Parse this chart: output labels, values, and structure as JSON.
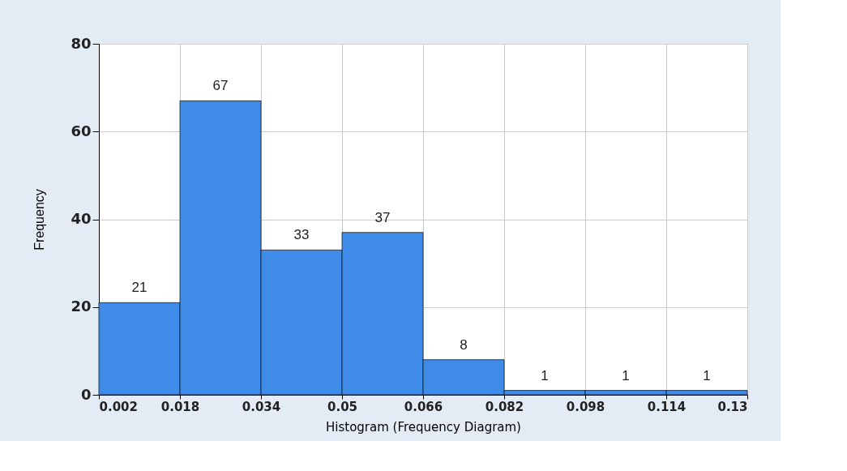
{
  "chart_data": {
    "type": "histogram",
    "xlabel": "Histogram (Frequency Diagram)",
    "ylabel": "Frequency",
    "bins": [
      0.002,
      0.018,
      0.034,
      0.05,
      0.066,
      0.082,
      0.098,
      0.114,
      0.13
    ],
    "values": [
      21,
      67,
      33,
      37,
      8,
      1,
      1,
      1
    ],
    "color": "#3f8be8",
    "xlim": [
      0.002,
      0.13
    ],
    "xticks": [
      0.002,
      0.018,
      0.034,
      0.05,
      0.066,
      0.082,
      0.098,
      0.114,
      0.13
    ],
    "ylim": [
      0,
      80
    ],
    "yticks": [
      0,
      20,
      40,
      60,
      80
    ],
    "grid": true,
    "data_labels": true
  }
}
